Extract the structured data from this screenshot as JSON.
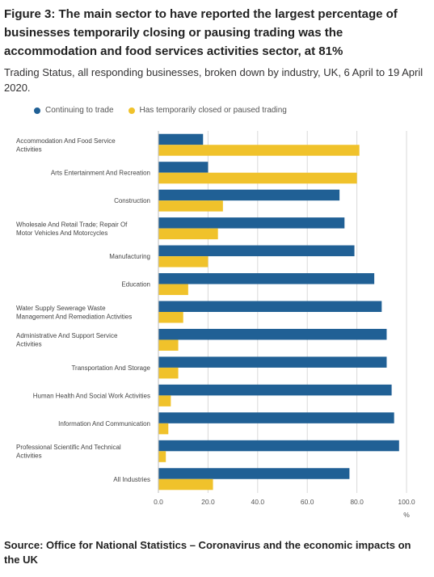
{
  "header": {
    "title": "Figure 3: The main sector to have reported the largest percentage of businesses temporarily closing or pausing trading was the accommodation and food services activities sector, at 81%",
    "subtitle": "Trading Status, all responding businesses, broken down by industry, UK, 6 April to 19 April 2020."
  },
  "source": "Source: Office for National Statistics – Coronavirus and the economic impacts on the UK",
  "colors": {
    "continuing": "#206095",
    "closed": "#f0c22b",
    "grid": "#d9d9d9"
  },
  "chart_data": {
    "type": "bar",
    "orientation": "horizontal",
    "title": "",
    "xlabel": "%",
    "ylabel": "",
    "xlim": [
      0,
      100
    ],
    "xticks": [
      "0.0",
      "20.0",
      "40.0",
      "60.0",
      "80.0",
      "100.0"
    ],
    "grid": true,
    "legend_position": "top-left",
    "categories": [
      [
        "Accommodation And Food Service",
        "Activities"
      ],
      [
        "Arts Entertainment And Recreation"
      ],
      [
        "Construction"
      ],
      [
        "Wholesale And Retail Trade; Repair Of",
        "Motor Vehicles And Motorcycles"
      ],
      [
        "Manufacturing"
      ],
      [
        "Education"
      ],
      [
        "Water Supply Sewerage Waste",
        "Management And Remediation Activities"
      ],
      [
        "Administrative And Support Service",
        "Activities"
      ],
      [
        "Transportation And Storage"
      ],
      [
        "Human Health And Social Work Activities"
      ],
      [
        "Information And Communication"
      ],
      [
        "Professional Scientific And Technical",
        "Activities"
      ],
      [
        "All Industries"
      ]
    ],
    "series": [
      {
        "name": "Continuing to trade",
        "values": [
          18,
          20,
          73,
          75,
          79,
          87,
          90,
          92,
          92,
          94,
          95,
          97,
          77
        ]
      },
      {
        "name": "Has temporarily closed or paused trading",
        "values": [
          81,
          80,
          26,
          24,
          20,
          12,
          10,
          8,
          8,
          5,
          4,
          3,
          22
        ]
      }
    ]
  }
}
